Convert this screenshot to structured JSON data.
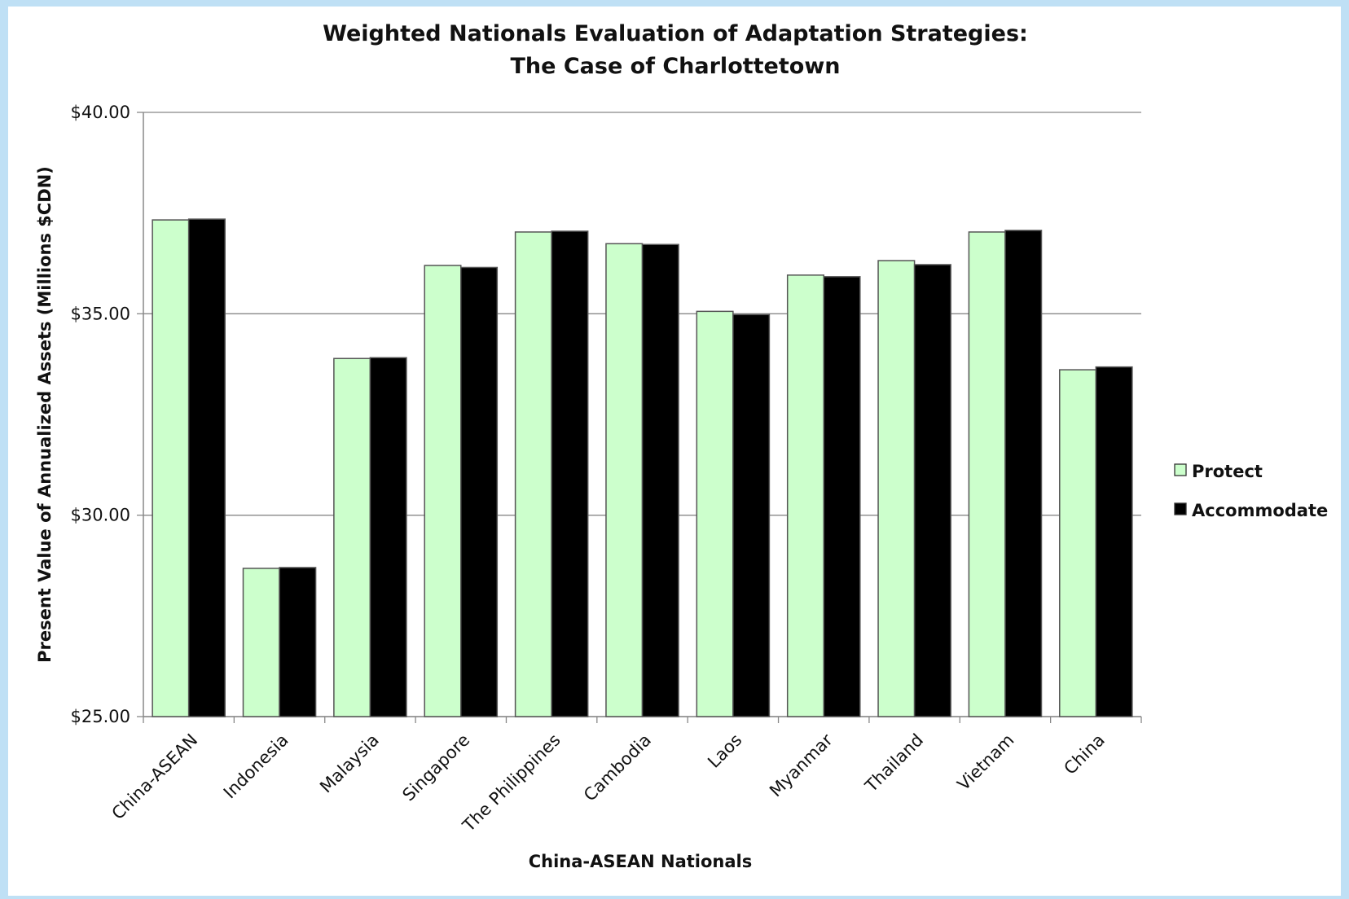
{
  "chart_data": {
    "type": "bar",
    "title": [
      "Weighted Nationals Evaluation of Adaptation Strategies:",
      "The Case of Charlottetown"
    ],
    "x_label": "China-ASEAN Nationals",
    "y_label": "Present Value of Annualized Assets (Millions $CDN)",
    "categories": [
      "China-ASEAN",
      "Indonesia",
      "Malaysia",
      "Singapore",
      "The Philippines",
      "Cambodia",
      "Laos",
      "Myanmar",
      "Thailand",
      "Vietnam",
      "China"
    ],
    "series": [
      {
        "name": "Protect",
        "color": "#ccffcc",
        "values": [
          37.33,
          28.68,
          33.89,
          36.2,
          37.03,
          36.74,
          35.06,
          35.96,
          36.32,
          37.03,
          33.61
        ]
      },
      {
        "name": "Accommodate",
        "color": "#000000",
        "values": [
          37.35,
          28.7,
          33.91,
          36.15,
          37.05,
          36.72,
          34.98,
          35.92,
          36.22,
          37.07,
          33.68
        ]
      }
    ],
    "ylim": [
      25,
      40
    ],
    "yticks": [
      {
        "value": 25,
        "label": "$25.00"
      },
      {
        "value": 30,
        "label": "$30.00"
      },
      {
        "value": 35,
        "label": "$35.00"
      },
      {
        "value": 40,
        "label": "$40.00"
      }
    ],
    "grid": true,
    "legend": "right"
  }
}
